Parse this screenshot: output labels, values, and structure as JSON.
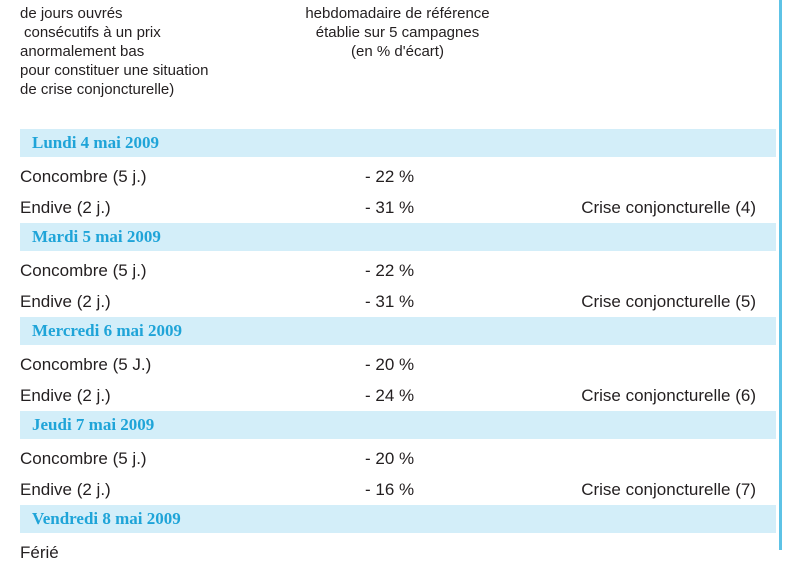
{
  "header": {
    "left_lines": [
      "de jours ouvrés",
      "consécutifs à un prix",
      "anormalement bas",
      "pour constituer une situation",
      "de crise conjoncturelle)"
    ],
    "mid_lines": [
      "hebdomadaire de référence",
      "établie sur 5 campagnes",
      "(en % d'écart)"
    ]
  },
  "days": [
    {
      "date": "Lundi 4 mai 2009",
      "items": [
        {
          "product": "Concombre (5 j.)",
          "value": "- 22 %",
          "crise": ""
        },
        {
          "product": "Endive (2 j.)",
          "value": "- 31 %",
          "crise": "Crise conjoncturelle (4)"
        }
      ]
    },
    {
      "date": "Mardi 5 mai 2009",
      "items": [
        {
          "product": "Concombre (5 j.)",
          "value": "- 22 %",
          "crise": ""
        },
        {
          "product": "Endive (2 j.)",
          "value": "- 31 %",
          "crise": "Crise conjoncturelle (5)"
        }
      ]
    },
    {
      "date": "Mercredi 6 mai 2009",
      "items": [
        {
          "product": "Concombre (5 J.)",
          "value": "- 20 %",
          "crise": ""
        },
        {
          "product": "Endive (2 j.)",
          "value": "- 24 %",
          "crise": "Crise conjoncturelle (6)"
        }
      ]
    },
    {
      "date": "Jeudi 7 mai 2009",
      "items": [
        {
          "product": "Concombre (5 j.)",
          "value": "- 20 %",
          "crise": ""
        },
        {
          "product": "Endive (2 j.)",
          "value": "- 16 %",
          "crise": "Crise conjoncturelle (7)"
        }
      ]
    },
    {
      "date": "Vendredi 8 mai 2009",
      "items": [
        {
          "product": "Férié",
          "value": "",
          "crise": ""
        }
      ]
    }
  ],
  "colors": {
    "day_band": "#d3eef9",
    "day_text": "#1fa4d8",
    "frame": "#5ec3e6"
  }
}
